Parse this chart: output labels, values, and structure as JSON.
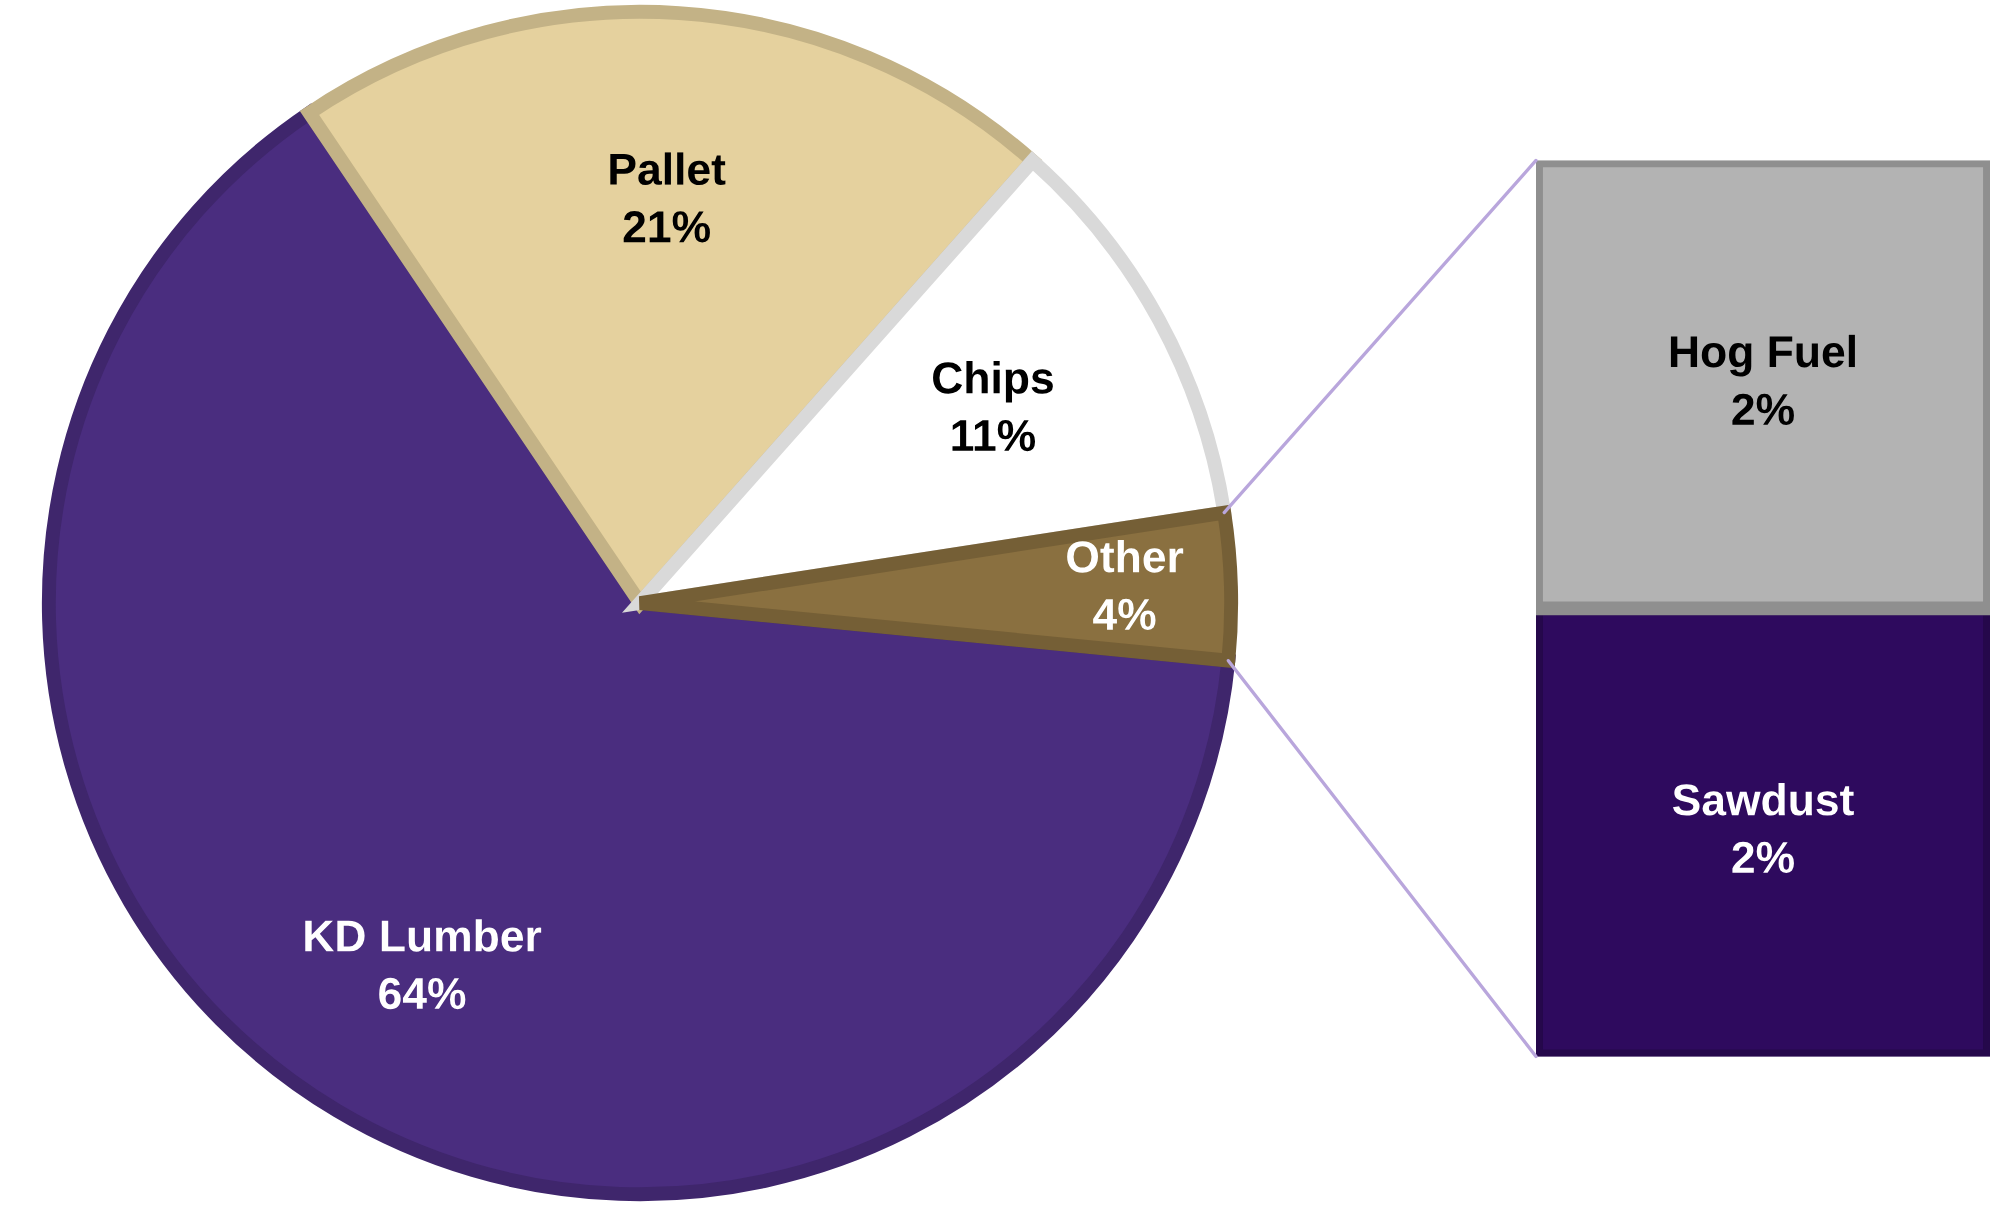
{
  "chart_data": [
    {
      "type": "pie",
      "categories": [
        "KD Lumber",
        "Pallet",
        "Chips",
        "Other"
      ],
      "values": [
        64,
        21,
        11,
        4
      ],
      "colors": [
        "#4a2d7f",
        "#e5d19e",
        "#ffffff",
        "#8a7040"
      ],
      "value_labels": [
        "64%",
        "21%",
        "11%",
        "4%"
      ]
    },
    {
      "type": "bar",
      "stacked": true,
      "categories": [
        null
      ],
      "series": [
        {
          "name": "Sawdust",
          "color": "#2e0a5e",
          "values": [
            2
          ],
          "value_labels": [
            "2%"
          ]
        },
        {
          "name": "Hog Fuel",
          "color": "#b3b3b3",
          "values": [
            2
          ],
          "value_labels": [
            "2%"
          ]
        }
      ]
    }
  ]
}
